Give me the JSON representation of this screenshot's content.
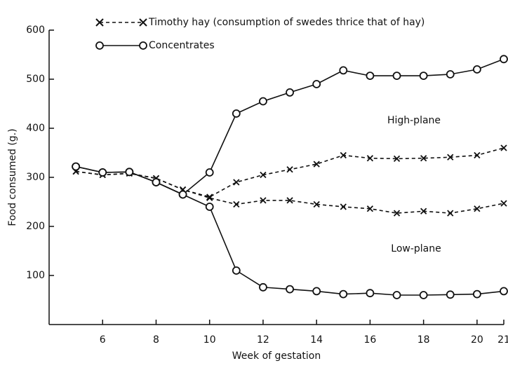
{
  "chart_data": {
    "type": "line",
    "xlabel": "Week of gestation",
    "ylabel": "Food consumed (g.)",
    "x": [
      5,
      6,
      7,
      8,
      9,
      10,
      11,
      12,
      13,
      14,
      15,
      16,
      17,
      18,
      19,
      20,
      21
    ],
    "series": [
      {
        "name": "Timothy hay (consumption of swedes thrice that of hay)",
        "color": "#111111",
        "marker": "x",
        "dash": true,
        "values": [
          312,
          305,
          308,
          298,
          275,
          260,
          290,
          305,
          316,
          327,
          345,
          339,
          338,
          339,
          341,
          345,
          360
        ]
      },
      {
        "color": "#111111",
        "marker": "x",
        "dash": true,
        "values": [
          312,
          305,
          308,
          298,
          275,
          258,
          245,
          253,
          253,
          245,
          240,
          236,
          227,
          231,
          227,
          236,
          247
        ]
      },
      {
        "name": "Concentrates",
        "color": "#111111",
        "marker": "o",
        "dash": false,
        "values": [
          322,
          310,
          311,
          290,
          265,
          310,
          430,
          455,
          473,
          490,
          518,
          507,
          507,
          507,
          510,
          520,
          541
        ]
      },
      {
        "color": "#111111",
        "marker": "o",
        "dash": false,
        "values": [
          322,
          310,
          311,
          290,
          265,
          240,
          110,
          76,
          72,
          68,
          62,
          64,
          60,
          60,
          61,
          62,
          68
        ]
      }
    ],
    "annotations": [
      "High-plane",
      "Low-plane"
    ],
    "xlim": [
      4,
      21
    ],
    "xticks": [
      6,
      8,
      10,
      12,
      14,
      16,
      18,
      20,
      21
    ],
    "ylim": [
      0,
      600
    ],
    "yticks": [
      100,
      200,
      300,
      400,
      500,
      600
    ]
  }
}
